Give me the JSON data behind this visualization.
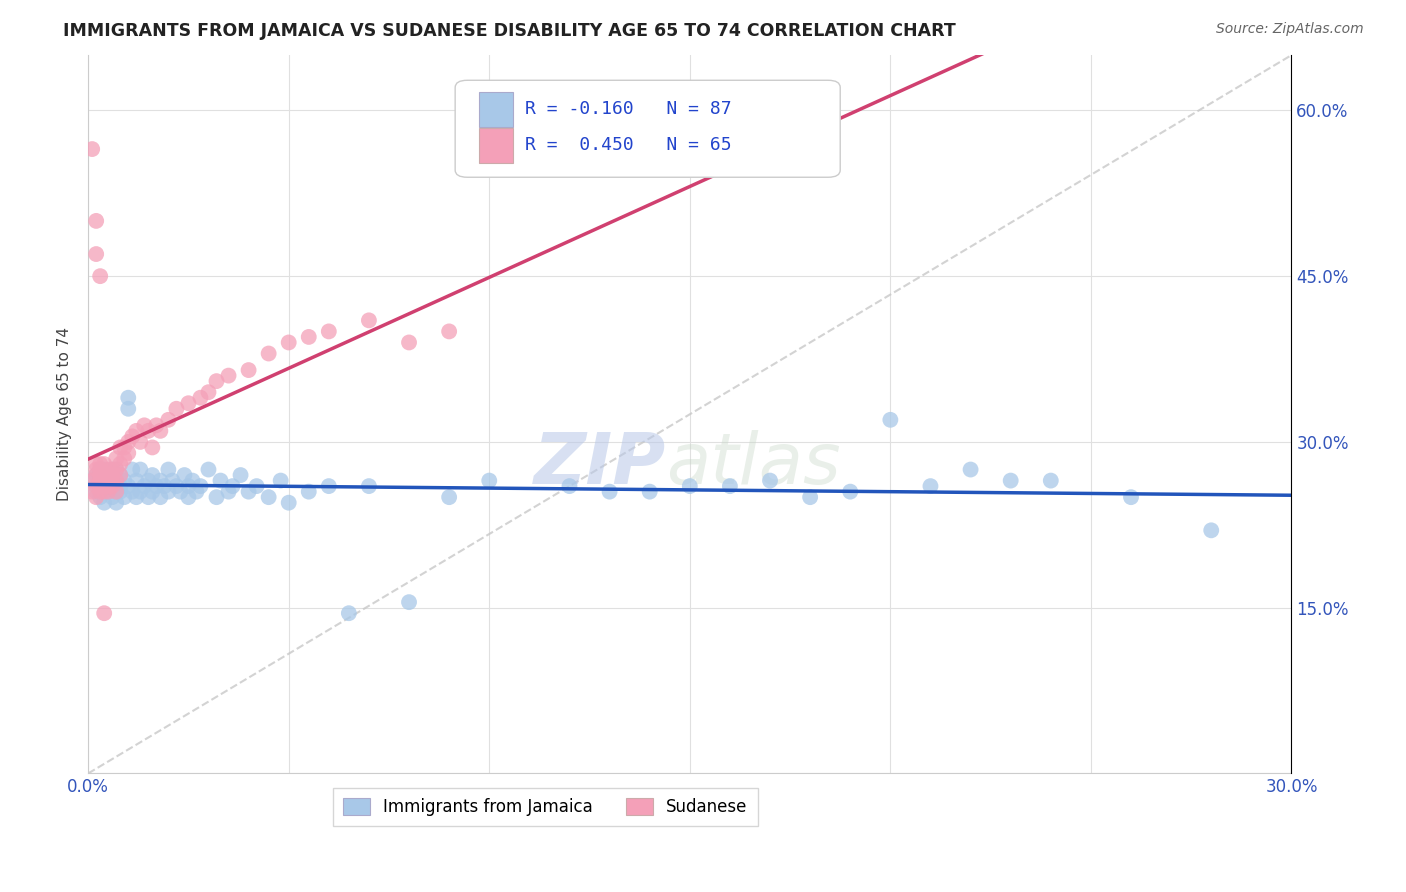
{
  "title": "IMMIGRANTS FROM JAMAICA VS SUDANESE DISABILITY AGE 65 TO 74 CORRELATION CHART",
  "source": "Source: ZipAtlas.com",
  "ylabel": "Disability Age 65 to 74",
  "xlim": [
    0.0,
    0.3
  ],
  "ylim": [
    0.0,
    0.65
  ],
  "x_ticks": [
    0.0,
    0.05,
    0.1,
    0.15,
    0.2,
    0.25,
    0.3
  ],
  "y_ticks": [
    0.0,
    0.15,
    0.3,
    0.45,
    0.6
  ],
  "y_tick_labels_right": [
    "",
    "15.0%",
    "30.0%",
    "45.0%",
    "60.0%"
  ],
  "x_tick_labels": [
    "0.0%",
    "",
    "",
    "",
    "",
    "",
    "30.0%"
  ],
  "legend_r_jamaica": "-0.160",
  "legend_n_jamaica": "87",
  "legend_r_sudanese": "0.450",
  "legend_n_sudanese": "65",
  "color_jamaica": "#a8c8e8",
  "color_sudanese": "#f4a0b8",
  "color_line_jamaica": "#2255bb",
  "color_line_sudanese": "#d04070",
  "color_diag": "#c8c8c8",
  "watermark_zip": "ZIP",
  "watermark_atlas": "atlas",
  "jamaica_x": [
    0.001,
    0.002,
    0.002,
    0.003,
    0.003,
    0.003,
    0.004,
    0.004,
    0.004,
    0.005,
    0.005,
    0.005,
    0.005,
    0.006,
    0.006,
    0.006,
    0.007,
    0.007,
    0.007,
    0.007,
    0.008,
    0.008,
    0.008,
    0.009,
    0.009,
    0.01,
    0.01,
    0.01,
    0.011,
    0.011,
    0.012,
    0.012,
    0.013,
    0.013,
    0.014,
    0.015,
    0.015,
    0.016,
    0.016,
    0.017,
    0.018,
    0.018,
    0.019,
    0.02,
    0.02,
    0.021,
    0.022,
    0.023,
    0.024,
    0.025,
    0.025,
    0.026,
    0.027,
    0.028,
    0.03,
    0.032,
    0.033,
    0.035,
    0.036,
    0.038,
    0.04,
    0.042,
    0.045,
    0.048,
    0.05,
    0.055,
    0.06,
    0.065,
    0.07,
    0.08,
    0.09,
    0.1,
    0.12,
    0.14,
    0.16,
    0.18,
    0.2,
    0.22,
    0.24,
    0.26,
    0.28,
    0.13,
    0.15,
    0.17,
    0.19,
    0.21,
    0.23
  ],
  "jamaica_y": [
    0.265,
    0.255,
    0.27,
    0.25,
    0.26,
    0.275,
    0.245,
    0.265,
    0.275,
    0.26,
    0.27,
    0.255,
    0.265,
    0.26,
    0.275,
    0.25,
    0.255,
    0.265,
    0.275,
    0.245,
    0.26,
    0.27,
    0.255,
    0.265,
    0.25,
    0.34,
    0.33,
    0.26,
    0.275,
    0.255,
    0.265,
    0.25,
    0.275,
    0.255,
    0.26,
    0.265,
    0.25,
    0.27,
    0.255,
    0.26,
    0.265,
    0.25,
    0.26,
    0.275,
    0.255,
    0.265,
    0.26,
    0.255,
    0.27,
    0.26,
    0.25,
    0.265,
    0.255,
    0.26,
    0.275,
    0.25,
    0.265,
    0.255,
    0.26,
    0.27,
    0.255,
    0.26,
    0.25,
    0.265,
    0.245,
    0.255,
    0.26,
    0.145,
    0.26,
    0.155,
    0.25,
    0.265,
    0.26,
    0.255,
    0.26,
    0.25,
    0.32,
    0.275,
    0.265,
    0.25,
    0.22,
    0.255,
    0.26,
    0.265,
    0.255,
    0.26,
    0.265
  ],
  "sudanese_x": [
    0.001,
    0.001,
    0.002,
    0.002,
    0.002,
    0.002,
    0.002,
    0.003,
    0.003,
    0.003,
    0.003,
    0.003,
    0.003,
    0.004,
    0.004,
    0.004,
    0.004,
    0.004,
    0.005,
    0.005,
    0.005,
    0.005,
    0.006,
    0.006,
    0.006,
    0.006,
    0.007,
    0.007,
    0.007,
    0.007,
    0.008,
    0.008,
    0.008,
    0.009,
    0.009,
    0.01,
    0.01,
    0.011,
    0.012,
    0.013,
    0.014,
    0.015,
    0.016,
    0.017,
    0.018,
    0.02,
    0.022,
    0.025,
    0.028,
    0.03,
    0.032,
    0.035,
    0.04,
    0.045,
    0.05,
    0.055,
    0.06,
    0.07,
    0.08,
    0.09,
    0.001,
    0.002,
    0.002,
    0.003,
    0.004
  ],
  "sudanese_y": [
    0.265,
    0.255,
    0.26,
    0.25,
    0.27,
    0.275,
    0.28,
    0.26,
    0.27,
    0.255,
    0.28,
    0.265,
    0.275,
    0.27,
    0.26,
    0.255,
    0.28,
    0.265,
    0.27,
    0.26,
    0.275,
    0.255,
    0.27,
    0.265,
    0.275,
    0.26,
    0.275,
    0.265,
    0.285,
    0.255,
    0.28,
    0.27,
    0.295,
    0.285,
    0.295,
    0.3,
    0.29,
    0.305,
    0.31,
    0.3,
    0.315,
    0.31,
    0.295,
    0.315,
    0.31,
    0.32,
    0.33,
    0.335,
    0.34,
    0.345,
    0.355,
    0.36,
    0.365,
    0.38,
    0.39,
    0.395,
    0.4,
    0.41,
    0.39,
    0.4,
    0.565,
    0.5,
    0.47,
    0.45,
    0.145
  ]
}
